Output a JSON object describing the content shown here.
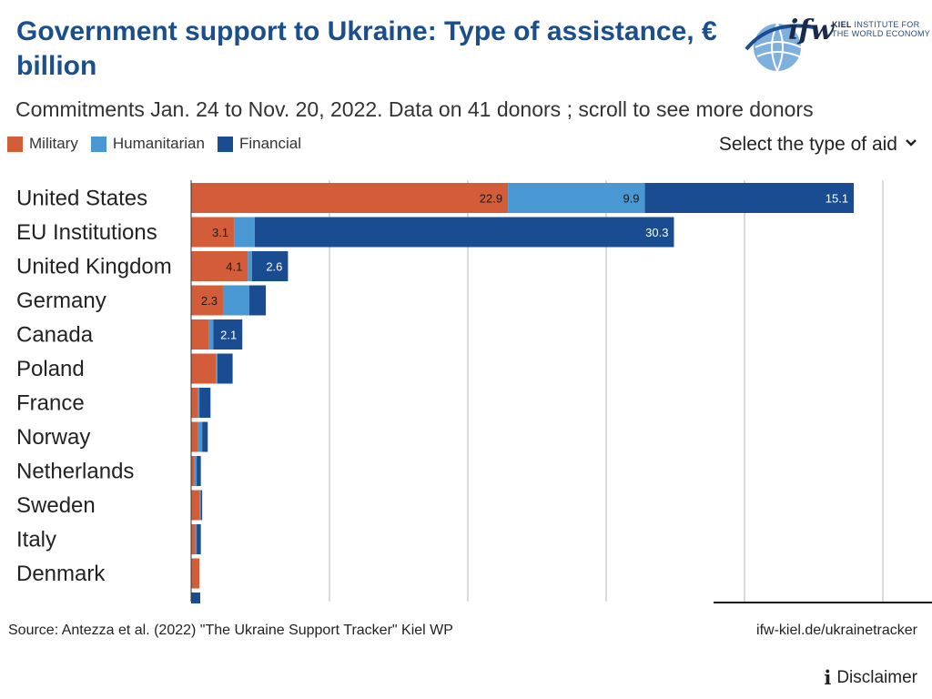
{
  "header": {
    "title": "Government support to Ukraine: Type of assistance, € billion",
    "subtitle": "Commitments Jan. 24 to Nov. 20, 2022. Data on 41 donors ; scroll to see more donors"
  },
  "logo": {
    "mark": "ifw",
    "line1": "KIEL",
    "line1_rest": "INSTITUTE FOR",
    "line2": "THE WORLD ECONOMY"
  },
  "legend": [
    {
      "label": "Military",
      "color": "#d45d39"
    },
    {
      "label": "Humanitarian",
      "color": "#4a98d3"
    },
    {
      "label": "Financial",
      "color": "#1a4c91"
    }
  ],
  "controls": {
    "select_label": "Select the type of aid",
    "select_icon": "chevron-down-icon"
  },
  "footer": {
    "source": "Source: Antezza et al. (2022) \"The Ukraine Support Tracker\" Kiel WP",
    "url": "ifw-kiel.de/ukrainetracker",
    "disclaimer": "Disclaimer",
    "disclaimer_icon": "info-icon"
  },
  "chart_data": {
    "type": "bar",
    "orientation": "horizontal",
    "stacked": true,
    "categories": [
      "United States",
      "EU Institutions",
      "United Kingdom",
      "Germany",
      "Canada",
      "Poland",
      "France",
      "Norway",
      "Netherlands",
      "Sweden",
      "Italy",
      "Denmark"
    ],
    "series": [
      {
        "name": "Military",
        "color": "#d45d39",
        "values": [
          22.9,
          3.1,
          4.1,
          2.3,
          1.3,
          1.8,
          0.5,
          0.5,
          0.2,
          0.6,
          0.3,
          0.6
        ]
      },
      {
        "name": "Humanitarian",
        "color": "#4a98d3",
        "values": [
          9.9,
          1.5,
          0.3,
          1.9,
          0.3,
          0.1,
          0.1,
          0.3,
          0.2,
          0.1,
          0.1,
          0.0
        ]
      },
      {
        "name": "Financial",
        "color": "#1a4c91",
        "values": [
          15.1,
          30.3,
          2.6,
          1.2,
          2.1,
          1.1,
          0.8,
          0.4,
          0.3,
          0.1,
          0.3,
          0.0
        ]
      }
    ],
    "data_labels": [
      [
        "22.9",
        "9.9",
        "15.1"
      ],
      [
        "3.1",
        "",
        "30.3"
      ],
      [
        "4.1",
        "",
        "2.6"
      ],
      [
        "2.3",
        "",
        ""
      ],
      [
        "",
        "",
        "2.1"
      ],
      [
        "",
        "",
        ""
      ],
      [
        "",
        "",
        ""
      ],
      [
        "",
        "",
        ""
      ],
      [
        "",
        "",
        ""
      ],
      [
        "",
        "",
        ""
      ],
      [
        "",
        "",
        ""
      ],
      [
        "",
        "",
        ""
      ]
    ],
    "xlim": [
      0,
      50
    ],
    "gridlines_x": [
      0,
      10,
      20,
      30,
      40,
      50
    ],
    "grid": true,
    "legend_position": "top-left",
    "scrollable": true
  }
}
